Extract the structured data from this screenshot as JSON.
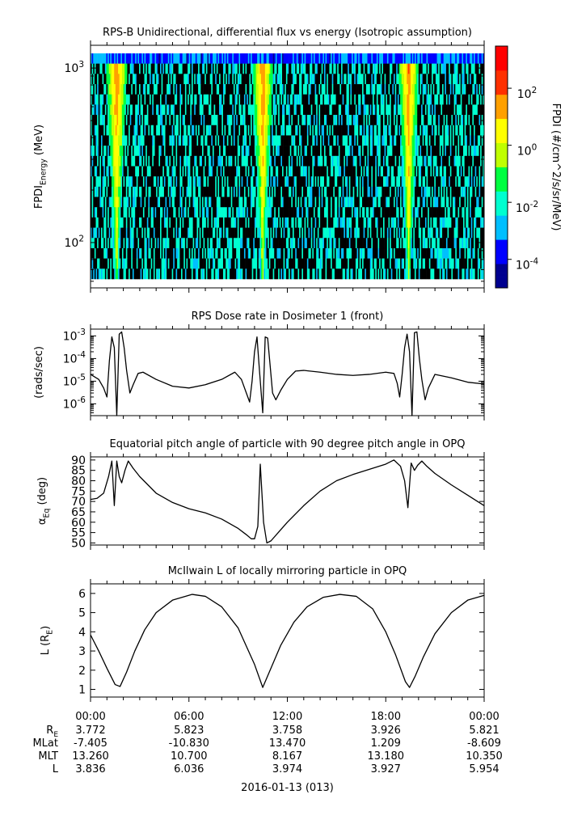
{
  "chart_data": [
    {
      "type": "heatmap",
      "title": "RPS-B  Unidirectional, differential flux vs energy (Isotropic assumption)",
      "ylabel": "FPDI",
      "ylabel_sub": "Energy",
      "ylabel_unit": " (MeV)",
      "y_scale": "log",
      "ylim": [
        55,
        1350
      ],
      "y_ticks": [
        {
          "value": 100,
          "base": "10",
          "exp": "2"
        },
        {
          "value": 1000,
          "base": "10",
          "exp": "3"
        }
      ],
      "energy_bins": 22,
      "time_bins": 300,
      "time_range_hours": [
        0,
        24
      ],
      "peaks_hours": [
        1.3,
        1.9,
        10.2,
        10.8,
        19.1,
        19.7
      ],
      "colorbar": {
        "label": "FPDI (#/cm^2/s/sr/MeV)",
        "scale": "log",
        "range": [
          1e-05,
          3000
        ],
        "ticks": [
          {
            "base": "10",
            "exp": "2",
            "value": 100
          },
          {
            "base": "10",
            "exp": "0",
            "value": 1
          },
          {
            "base": "10",
            "exp": "-2",
            "value": 0.01
          },
          {
            "base": "10",
            "exp": "-4",
            "value": 0.0001
          }
        ],
        "colors": [
          "#00008f",
          "#0000ff",
          "#00bfff",
          "#00ffd0",
          "#00ff40",
          "#c0ff00",
          "#ffff00",
          "#ffa000",
          "#ff3000",
          "#ff0000"
        ]
      }
    },
    {
      "type": "line",
      "title": "RPS  Dose rate in Dosimeter 1 (front)",
      "ylabel": "(rads/sec)",
      "y_scale": "log",
      "ylim": [
        3e-07,
        0.002
      ],
      "y_ticks": [
        {
          "value": 0.001,
          "base": "10",
          "exp": "-3"
        },
        {
          "value": 0.0001,
          "base": "10",
          "exp": "-4"
        },
        {
          "value": 1e-05,
          "base": "10",
          "exp": "-5"
        },
        {
          "value": 1e-06,
          "base": "10",
          "exp": "-6"
        }
      ],
      "x": [
        0,
        0.5,
        0.8,
        1.0,
        1.15,
        1.3,
        1.45,
        1.6,
        1.75,
        1.9,
        2.05,
        2.2,
        2.4,
        2.6,
        2.9,
        3.2,
        4.0,
        5.0,
        6.0,
        7.0,
        8.0,
        8.8,
        9.2,
        9.5,
        9.7,
        9.85,
        10.0,
        10.15,
        10.3,
        10.5,
        10.65,
        10.8,
        10.95,
        11.1,
        11.3,
        11.6,
        12.0,
        12.5,
        13.0,
        14.0,
        15.0,
        16.0,
        17.0,
        18.0,
        18.5,
        18.7,
        18.85,
        19.0,
        19.15,
        19.3,
        19.45,
        19.6,
        19.75,
        19.9,
        20.05,
        20.2,
        20.4,
        20.6,
        21.0,
        22.0,
        23.0,
        24.0
      ],
      "series": [
        {
          "values": [
            2e-05,
            1.2e-05,
            5e-06,
            2e-06,
            8e-05,
            0.0009,
            0.0003,
            3e-07,
            0.0012,
            0.0015,
            0.0003,
            3e-05,
            3e-06,
            7e-06,
            2.2e-05,
            2.5e-05,
            1.2e-05,
            6e-06,
            5e-06,
            7e-06,
            1.2e-05,
            2.5e-05,
            1.2e-05,
            3e-06,
            1.2e-06,
            1e-05,
            0.0002,
            0.0009,
            3e-05,
            4e-07,
            0.0009,
            0.0008,
            5e-05,
            3e-06,
            1.5e-06,
            4e-06,
            1.2e-05,
            2.8e-05,
            3e-05,
            2.5e-05,
            2e-05,
            1.8e-05,
            2e-05,
            2.5e-05,
            2.2e-05,
            8e-06,
            2e-06,
            2e-05,
            0.0003,
            0.0012,
            0.0002,
            3e-07,
            0.0014,
            0.0015,
            0.0001,
            1.2e-05,
            1.5e-06,
            5e-06,
            2e-05,
            1.4e-05,
            9e-06,
            7.5e-06
          ]
        }
      ]
    },
    {
      "type": "line",
      "title": "Equatorial pitch angle of particle with 90 degree pitch angle in OPQ",
      "ylabel": "α",
      "ylabel_sub": "Eq",
      "ylabel_unit": " (deg)",
      "ylim": [
        49,
        91.5
      ],
      "y_ticks": [
        90,
        85,
        80,
        75,
        70,
        65,
        60,
        55,
        50
      ],
      "x": [
        0,
        0.4,
        0.8,
        1.1,
        1.3,
        1.45,
        1.6,
        1.75,
        1.9,
        2.1,
        2.3,
        2.6,
        3.0,
        4.0,
        5.0,
        6.0,
        7.0,
        8.0,
        9.0,
        9.5,
        9.8,
        10.0,
        10.2,
        10.35,
        10.55,
        10.75,
        11.0,
        11.5,
        12.0,
        13.0,
        14.0,
        15.0,
        16.0,
        17.0,
        18.0,
        18.5,
        18.9,
        19.15,
        19.35,
        19.55,
        19.75,
        19.95,
        20.2,
        20.5,
        21.0,
        22.0,
        23.0,
        24.0
      ],
      "series": [
        {
          "values": [
            71,
            71.5,
            74,
            82,
            89.5,
            68,
            89.5,
            82,
            79,
            85,
            89.5,
            86,
            82,
            74,
            69.5,
            66.5,
            64.5,
            61.5,
            57,
            54,
            52,
            52,
            58,
            88,
            60,
            50,
            51,
            55.5,
            60,
            68,
            75,
            80,
            83,
            85.5,
            88,
            90,
            87,
            80,
            67,
            88.5,
            85,
            87.5,
            89.5,
            87,
            83.5,
            78,
            73,
            68
          ]
        }
      ]
    },
    {
      "type": "line",
      "title": "McIlwain L of locally mirroring particle in OPQ",
      "ylabel": "L (R",
      "ylabel_sub": "E",
      "ylabel_unit": ")",
      "ylim": [
        0.6,
        6.5
      ],
      "y_ticks": [
        6,
        5,
        4,
        3,
        2,
        1
      ],
      "x": [
        0,
        0.5,
        1.0,
        1.5,
        1.8,
        2.2,
        2.7,
        3.3,
        4.0,
        5.0,
        6.2,
        7.0,
        8.0,
        9.0,
        10.0,
        10.5,
        11.0,
        11.6,
        12.4,
        13.2,
        14.2,
        15.2,
        16.2,
        17.2,
        18.0,
        18.6,
        19.2,
        19.45,
        19.8,
        20.3,
        21.0,
        22.0,
        23.0,
        24.0
      ],
      "series": [
        {
          "values": [
            3.84,
            3.0,
            2.1,
            1.25,
            1.15,
            1.9,
            3.0,
            4.1,
            5.0,
            5.65,
            5.95,
            5.85,
            5.3,
            4.2,
            2.3,
            1.1,
            2.1,
            3.3,
            4.5,
            5.3,
            5.8,
            5.95,
            5.85,
            5.2,
            4.0,
            2.8,
            1.4,
            1.1,
            1.7,
            2.7,
            3.9,
            5.0,
            5.65,
            5.9
          ]
        }
      ]
    }
  ],
  "time_axis": {
    "tick_hours": [
      0,
      6,
      12,
      18,
      24
    ],
    "tick_labels": [
      "00:00",
      "06:00",
      "12:00",
      "18:00",
      "00:00"
    ],
    "date_label": "2016-01-13 (013)"
  },
  "ephemeris": {
    "rows": [
      {
        "label": "R",
        "label_sub": "E",
        "values": [
          "3.772",
          "5.823",
          "3.758",
          "3.926",
          "5.821"
        ]
      },
      {
        "label": "MLat",
        "label_sub": "",
        "values": [
          "-7.405",
          "-10.830",
          "13.470",
          "1.209",
          "-8.609"
        ]
      },
      {
        "label": "MLT",
        "label_sub": "",
        "values": [
          "13.260",
          "10.700",
          "8.167",
          "13.180",
          "10.350"
        ]
      },
      {
        "label": "L",
        "label_sub": "",
        "values": [
          "3.836",
          "6.036",
          "3.974",
          "3.927",
          "5.954"
        ]
      }
    ]
  }
}
